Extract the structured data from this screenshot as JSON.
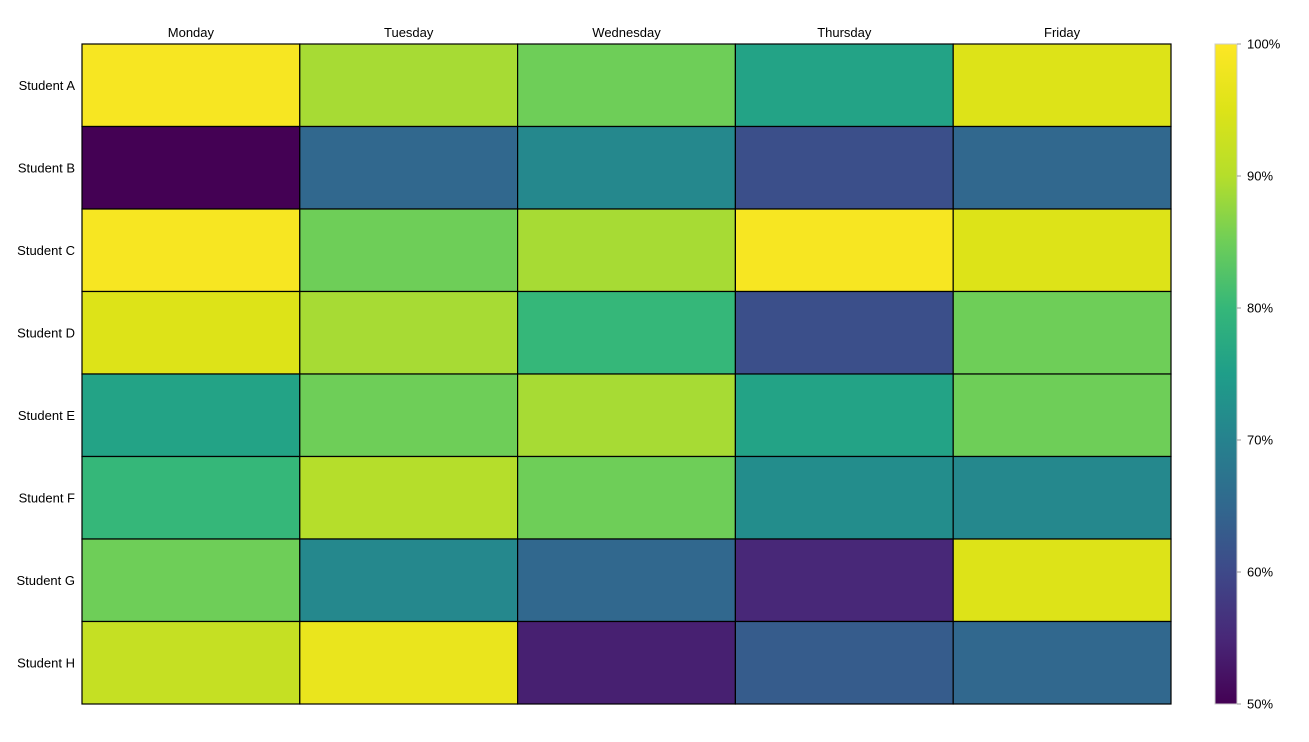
{
  "chart_data": {
    "type": "heatmap",
    "title": "",
    "xlabel": "",
    "ylabel": "",
    "x_categories": [
      "Monday",
      "Tuesday",
      "Wednesday",
      "Thursday",
      "Friday"
    ],
    "y_categories": [
      "Student A",
      "Student B",
      "Student C",
      "Student D",
      "Student E",
      "Student F",
      "Student G",
      "Student H"
    ],
    "values": [
      [
        99,
        89,
        85,
        76,
        95
      ],
      [
        50,
        65,
        71,
        61,
        65
      ],
      [
        99,
        85,
        89,
        99,
        95
      ],
      [
        95,
        89,
        80,
        61,
        85
      ],
      [
        76,
        85,
        89,
        76,
        85
      ],
      [
        80,
        90,
        85,
        72,
        71
      ],
      [
        85,
        71,
        65,
        55,
        95
      ],
      [
        92,
        97,
        54,
        63,
        65
      ]
    ],
    "colorbar": {
      "min": 50,
      "max": 100,
      "ticks": [
        100,
        90,
        80,
        70,
        60,
        50
      ],
      "tick_labels": [
        "100%",
        "90%",
        "80%",
        "70%",
        "60%",
        "50%"
      ],
      "colormap": "viridis"
    },
    "x_axis_position": "top",
    "grid": false,
    "legend": "colorbar-right"
  }
}
